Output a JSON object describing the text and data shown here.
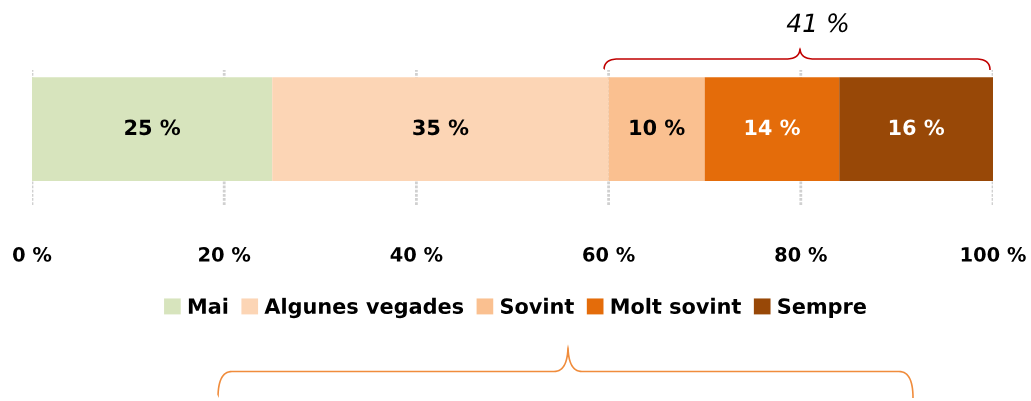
{
  "chart_data": {
    "type": "bar",
    "orientation": "horizontal",
    "stacked": true,
    "categories": [
      null
    ],
    "series": [
      {
        "name": "Mai",
        "color": "#d7e4bd",
        "values": [
          25
        ],
        "value_labels": [
          "25 %"
        ]
      },
      {
        "name": "Algunes vegades",
        "color": "#fcd5b5",
        "values": [
          35
        ],
        "value_labels": [
          "35 %"
        ]
      },
      {
        "name": "Sovint",
        "color": "#fac090",
        "values": [
          10
        ],
        "value_labels": [
          "10 %"
        ]
      },
      {
        "name": "Molt sovint",
        "color": "#e46c0a",
        "values": [
          14
        ],
        "value_labels": [
          "14 %"
        ]
      },
      {
        "name": "Sempre",
        "color": "#984807",
        "values": [
          16
        ],
        "value_labels": [
          "16 %"
        ]
      }
    ],
    "xlim": [
      0,
      100
    ],
    "xticks": [
      {
        "value": 0,
        "label": "0 %"
      },
      {
        "value": 20,
        "label": "20 %"
      },
      {
        "value": 40,
        "label": "40 %"
      },
      {
        "value": 60,
        "label": "60 %"
      },
      {
        "value": 80,
        "label": "80 %"
      },
      {
        "value": 100,
        "label": "100 %"
      }
    ],
    "tick_labels": "x",
    "grid": "x",
    "legend": "bottom",
    "annotations": [
      "41 %"
    ]
  }
}
